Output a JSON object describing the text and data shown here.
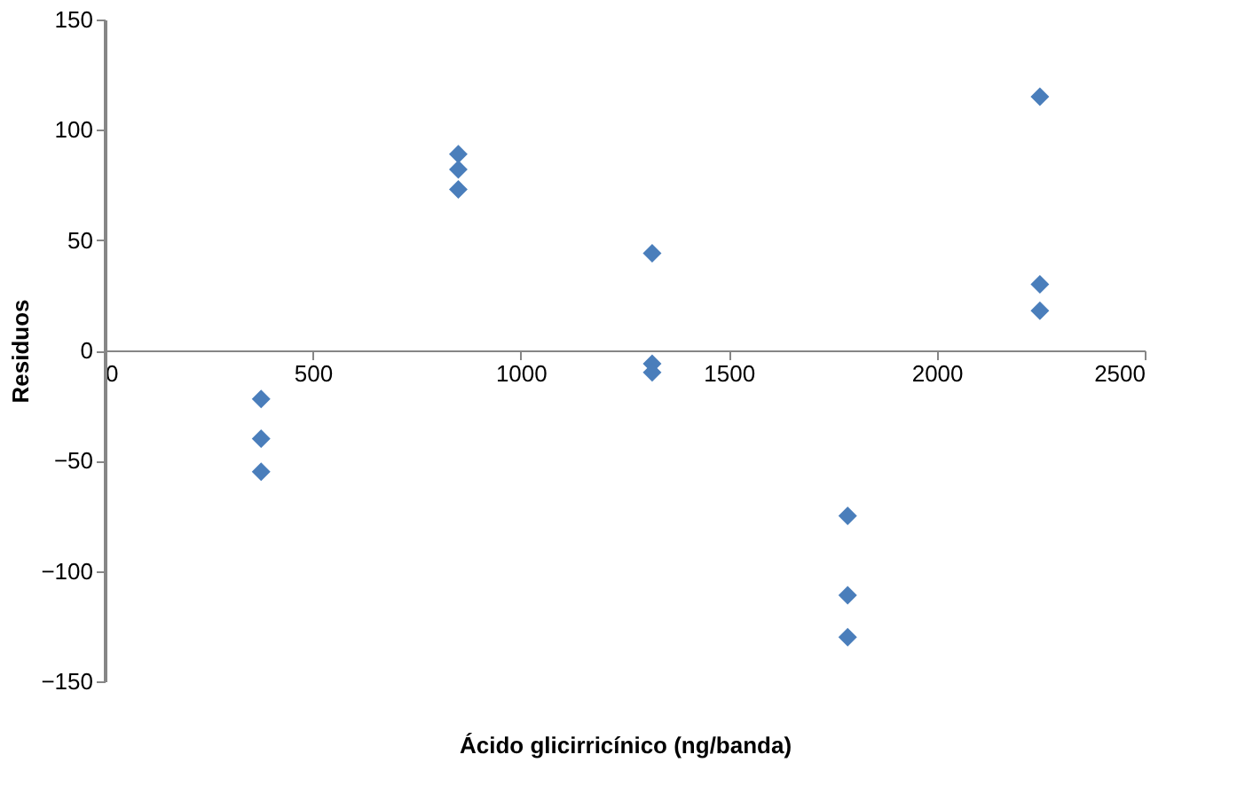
{
  "chart_data": {
    "type": "scatter",
    "xlabel": "Ácido glicirricínico (ng/banda)",
    "ylabel": "Residuos",
    "x": [
      376,
      376,
      376,
      850,
      850,
      850,
      1316,
      1316,
      1316,
      1786,
      1786,
      1786,
      2248,
      2248,
      2248
    ],
    "series": [
      {
        "color": "#4a7ebb",
        "values": [
          -22,
          -40,
          -55,
          89,
          82,
          73,
          44,
          -6,
          -10,
          -75,
          -111,
          -130,
          115,
          30,
          18
        ]
      }
    ],
    "marker": "diamond",
    "xlim": [
      0,
      2500
    ],
    "xticks": [
      0,
      500,
      1000,
      1500,
      2000,
      2500
    ],
    "ylim": [
      -150,
      150
    ],
    "yticks": [
      -150,
      -100,
      -50,
      0,
      50,
      100,
      150
    ],
    "grid": false
  }
}
